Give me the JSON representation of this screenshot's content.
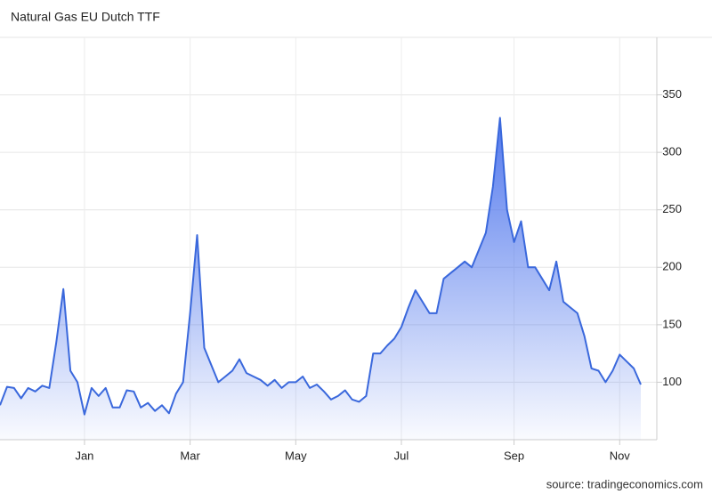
{
  "title": "Natural Gas EU Dutch TTF",
  "source": "source: tradingeconomics.com",
  "chart_data": {
    "type": "area",
    "categories": [
      null,
      null,
      null,
      null,
      null,
      null,
      null,
      null,
      null,
      null,
      null,
      null,
      "Jan",
      null,
      null,
      null,
      null,
      null,
      null,
      null,
      null,
      null,
      null,
      null,
      null,
      null,
      null,
      "Mar",
      null,
      null,
      null,
      null,
      null,
      null,
      null,
      null,
      null,
      null,
      null,
      null,
      null,
      null,
      "May",
      null,
      null,
      null,
      null,
      null,
      null,
      null,
      null,
      null,
      null,
      null,
      null,
      null,
      null,
      "Jul",
      null,
      null,
      null,
      null,
      null,
      null,
      null,
      null,
      null,
      null,
      null,
      null,
      null,
      null,
      null,
      "Sep",
      null,
      null,
      null,
      null,
      null,
      null,
      null,
      null,
      null,
      null,
      null,
      null,
      null,
      null,
      "Nov",
      null,
      null,
      null
    ],
    "series": [
      {
        "color": "#3a68dc",
        "values": [
          80,
          96,
          95,
          86,
          95,
          92,
          97,
          95,
          135,
          181,
          110,
          100,
          72,
          95,
          88,
          95,
          78,
          78,
          93,
          92,
          78,
          82,
          75,
          80,
          73,
          90,
          100,
          160,
          228,
          130,
          115,
          100,
          105,
          110,
          120,
          108,
          105,
          102,
          97,
          102,
          95,
          100,
          100,
          105,
          95,
          98,
          92,
          85,
          88,
          93,
          85,
          83,
          88,
          125,
          125,
          132,
          138,
          148,
          165,
          180,
          170,
          160,
          160,
          190,
          195,
          200,
          205,
          200,
          215,
          230,
          270,
          330,
          250,
          222,
          240,
          200,
          200,
          190,
          180,
          205,
          170,
          165,
          160,
          140,
          112,
          110,
          100,
          110,
          124,
          118,
          112,
          98
        ]
      }
    ],
    "ylim": [
      50,
      400
    ],
    "yticks": [
      100,
      150,
      200,
      250,
      300,
      350
    ],
    "grid": true
  }
}
